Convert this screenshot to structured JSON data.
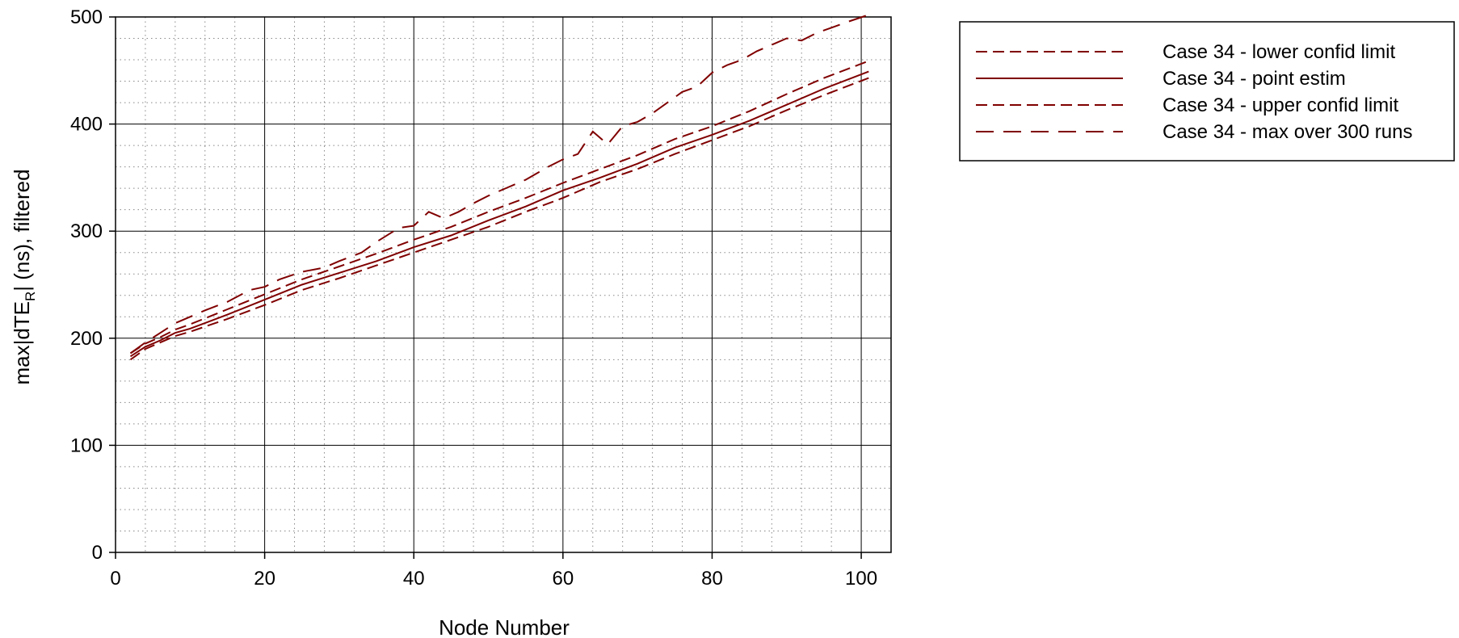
{
  "chart_data": {
    "type": "line",
    "xlabel": "Node Number",
    "ylabel_main": "max|dTE",
    "ylabel_sub": "R",
    "ylabel_tail": "| (ns), filtered",
    "xlim": [
      0,
      104
    ],
    "ylim": [
      0,
      500
    ],
    "xticks": [
      0,
      20,
      40,
      60,
      80,
      100
    ],
    "yticks": [
      0,
      100,
      200,
      300,
      400,
      500
    ],
    "grid": "major solid, minor dotted",
    "legend_position": "outside-right-top",
    "line_color": "#800000",
    "series": [
      {
        "name": "Case 34 - lower confid limit",
        "style": "dashed",
        "x": [
          2,
          4,
          6,
          8,
          10,
          15,
          20,
          25,
          30,
          35,
          40,
          45,
          50,
          55,
          60,
          65,
          70,
          75,
          80,
          85,
          90,
          95,
          101
        ],
        "y": [
          180,
          190,
          196,
          202,
          206,
          218,
          231,
          245,
          256,
          268,
          280,
          292,
          304,
          318,
          331,
          346,
          358,
          372,
          385,
          398,
          413,
          427,
          443
        ]
      },
      {
        "name": "Case 34 - point estim",
        "style": "solid",
        "x": [
          2,
          4,
          6,
          8,
          10,
          15,
          20,
          25,
          30,
          35,
          40,
          45,
          50,
          55,
          60,
          65,
          70,
          75,
          80,
          85,
          90,
          95,
          101
        ],
        "y": [
          183,
          192,
          198,
          205,
          209,
          222,
          236,
          250,
          261,
          272,
          285,
          296,
          310,
          323,
          338,
          350,
          363,
          378,
          390,
          403,
          418,
          433,
          449
        ]
      },
      {
        "name": "Case 34 - upper confid limit",
        "style": "dashed",
        "x": [
          2,
          4,
          6,
          8,
          10,
          15,
          20,
          25,
          30,
          35,
          40,
          45,
          50,
          55,
          60,
          65,
          70,
          75,
          80,
          85,
          90,
          95,
          101
        ],
        "y": [
          186,
          195,
          201,
          208,
          213,
          227,
          241,
          255,
          267,
          279,
          292,
          304,
          318,
          331,
          345,
          358,
          371,
          386,
          398,
          412,
          428,
          443,
          459
        ]
      },
      {
        "name": "Case 34 - max over 300 runs",
        "style": "longdash",
        "x": [
          2,
          4,
          6,
          8,
          10,
          12,
          15,
          18,
          20,
          22,
          25,
          28,
          30,
          33,
          35,
          38,
          40,
          42,
          44,
          46,
          48,
          50,
          53,
          55,
          58,
          60,
          62,
          64,
          66,
          68,
          70,
          72,
          74,
          76,
          78,
          80,
          82,
          84,
          86,
          88,
          90,
          92,
          94,
          96,
          98,
          101
        ],
        "y": [
          186,
          196,
          205,
          214,
          220,
          226,
          234,
          245,
          248,
          255,
          262,
          266,
          272,
          280,
          290,
          303,
          305,
          318,
          312,
          318,
          326,
          333,
          342,
          348,
          360,
          367,
          372,
          393,
          381,
          398,
          402,
          410,
          420,
          430,
          435,
          448,
          455,
          460,
          468,
          474,
          480,
          478,
          485,
          490,
          495,
          502
        ]
      }
    ]
  }
}
